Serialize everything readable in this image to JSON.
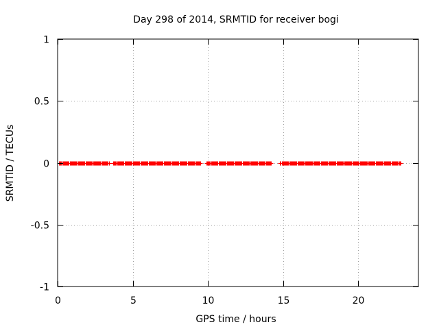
{
  "chart_data": {
    "type": "scatter",
    "title": "Day 298 of 2014, SRMTID for receiver bogi",
    "xlabel": "GPS time / hours",
    "ylabel": "SRMTID / TECUs",
    "xlim": [
      0,
      24
    ],
    "ylim": [
      -1,
      1
    ],
    "xticks": [
      0,
      5,
      10,
      15,
      20
    ],
    "xtick_labels": [
      "0",
      "5",
      "10",
      "15",
      "20"
    ],
    "yticks": [
      -1,
      -0.5,
      0,
      0.5,
      1
    ],
    "ytick_labels": [
      "-1",
      "-0.5",
      "0",
      "0.5",
      "1"
    ],
    "grid": true,
    "marker": "+",
    "series": [
      {
        "name": "SRMTID",
        "color": "#ff0000",
        "x_ranges": [
          [
            0.1,
            3.4
          ],
          [
            3.7,
            9.5
          ],
          [
            9.9,
            14.2
          ],
          [
            14.8,
            22.8
          ]
        ],
        "x_step": 0.05,
        "y": 0
      }
    ]
  }
}
